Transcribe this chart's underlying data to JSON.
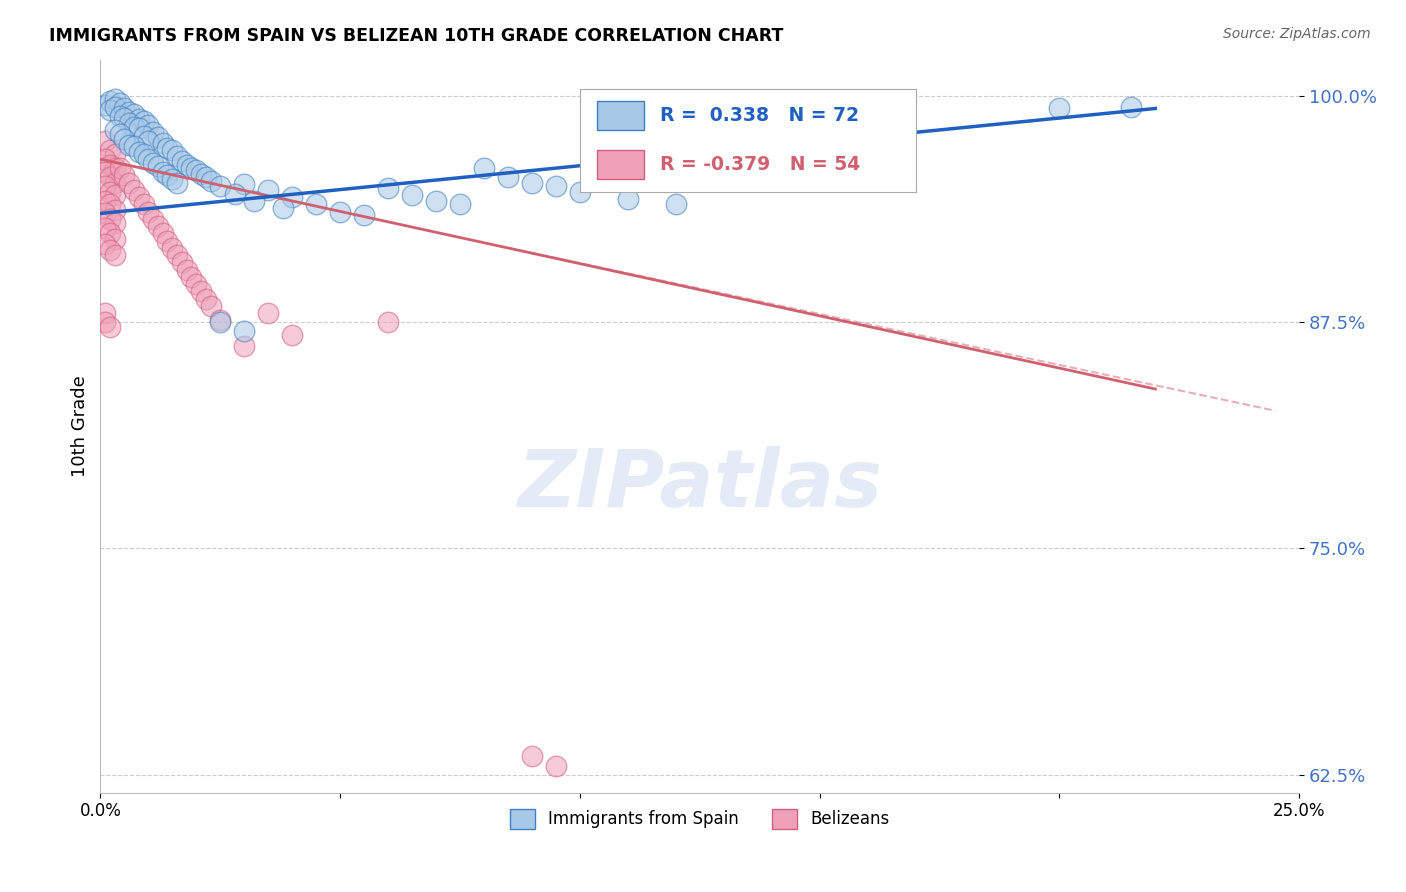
{
  "title": "IMMIGRANTS FROM SPAIN VS BELIZEAN 10TH GRADE CORRELATION CHART",
  "source": "Source: ZipAtlas.com",
  "ylabel": "10th Grade",
  "x_min": 0.0,
  "x_max": 0.25,
  "y_min": 0.615,
  "y_max": 1.02,
  "yticks": [
    0.625,
    0.75,
    0.875,
    1.0
  ],
  "ytick_labels": [
    "62.5%",
    "75.0%",
    "87.5%",
    "100.0%"
  ],
  "xticks": [
    0.0,
    0.05,
    0.1,
    0.15,
    0.2,
    0.25
  ],
  "xtick_labels": [
    "0.0%",
    "",
    "",
    "",
    "",
    "25.0%"
  ],
  "blue_R": 0.338,
  "blue_N": 72,
  "pink_R": -0.379,
  "pink_N": 54,
  "blue_color": "#A8C8E8",
  "pink_color": "#F0A0B8",
  "blue_edge_color": "#4080C0",
  "pink_edge_color": "#D06080",
  "blue_line_color": "#2060C0",
  "pink_line_color": "#D06070",
  "legend_label_blue": "Immigrants from Spain",
  "legend_label_pink": "Belizeans",
  "watermark": "ZIPatlas",
  "blue_trend_x": [
    0.0,
    0.22
  ],
  "blue_trend_y": [
    0.935,
    0.993
  ],
  "pink_trend_x": [
    0.0,
    0.22
  ],
  "pink_trend_y": [
    0.965,
    0.838
  ],
  "pink_dash_trend_x": [
    0.085,
    0.245
  ],
  "pink_dash_trend_y": [
    0.916,
    0.826
  ],
  "blue_scatter": [
    [
      0.001,
      0.995
    ],
    [
      0.002,
      0.997
    ],
    [
      0.003,
      0.998
    ],
    [
      0.004,
      0.996
    ],
    [
      0.002,
      0.992
    ],
    [
      0.003,
      0.994
    ],
    [
      0.005,
      0.993
    ],
    [
      0.006,
      0.991
    ],
    [
      0.004,
      0.989
    ],
    [
      0.007,
      0.99
    ],
    [
      0.005,
      0.988
    ],
    [
      0.008,
      0.987
    ],
    [
      0.006,
      0.985
    ],
    [
      0.009,
      0.986
    ],
    [
      0.007,
      0.983
    ],
    [
      0.01,
      0.984
    ],
    [
      0.003,
      0.981
    ],
    [
      0.008,
      0.982
    ],
    [
      0.011,
      0.98
    ],
    [
      0.004,
      0.979
    ],
    [
      0.009,
      0.978
    ],
    [
      0.012,
      0.977
    ],
    [
      0.005,
      0.976
    ],
    [
      0.01,
      0.975
    ],
    [
      0.006,
      0.973
    ],
    [
      0.013,
      0.974
    ],
    [
      0.007,
      0.972
    ],
    [
      0.014,
      0.971
    ],
    [
      0.008,
      0.969
    ],
    [
      0.015,
      0.97
    ],
    [
      0.009,
      0.968
    ],
    [
      0.016,
      0.967
    ],
    [
      0.01,
      0.965
    ],
    [
      0.017,
      0.964
    ],
    [
      0.011,
      0.963
    ],
    [
      0.018,
      0.962
    ],
    [
      0.012,
      0.961
    ],
    [
      0.019,
      0.96
    ],
    [
      0.013,
      0.958
    ],
    [
      0.02,
      0.959
    ],
    [
      0.014,
      0.956
    ],
    [
      0.021,
      0.957
    ],
    [
      0.015,
      0.954
    ],
    [
      0.022,
      0.955
    ],
    [
      0.016,
      0.952
    ],
    [
      0.023,
      0.953
    ],
    [
      0.03,
      0.951
    ],
    [
      0.025,
      0.95
    ],
    [
      0.035,
      0.948
    ],
    [
      0.028,
      0.946
    ],
    [
      0.04,
      0.944
    ],
    [
      0.032,
      0.942
    ],
    [
      0.045,
      0.94
    ],
    [
      0.038,
      0.938
    ],
    [
      0.05,
      0.936
    ],
    [
      0.055,
      0.934
    ],
    [
      0.06,
      0.949
    ],
    [
      0.065,
      0.945
    ],
    [
      0.07,
      0.942
    ],
    [
      0.075,
      0.94
    ],
    [
      0.08,
      0.96
    ],
    [
      0.085,
      0.955
    ],
    [
      0.09,
      0.952
    ],
    [
      0.095,
      0.95
    ],
    [
      0.1,
      0.947
    ],
    [
      0.11,
      0.943
    ],
    [
      0.12,
      0.94
    ],
    [
      0.13,
      0.992
    ],
    [
      0.2,
      0.993
    ],
    [
      0.215,
      0.994
    ],
    [
      0.025,
      0.875
    ],
    [
      0.03,
      0.87
    ]
  ],
  "pink_scatter": [
    [
      0.001,
      0.975
    ],
    [
      0.002,
      0.97
    ],
    [
      0.003,
      0.968
    ],
    [
      0.001,
      0.965
    ],
    [
      0.002,
      0.962
    ],
    [
      0.003,
      0.96
    ],
    [
      0.001,
      0.958
    ],
    [
      0.002,
      0.955
    ],
    [
      0.003,
      0.952
    ],
    [
      0.001,
      0.95
    ],
    [
      0.002,
      0.947
    ],
    [
      0.003,
      0.945
    ],
    [
      0.001,
      0.942
    ],
    [
      0.002,
      0.94
    ],
    [
      0.003,
      0.937
    ],
    [
      0.001,
      0.935
    ],
    [
      0.002,
      0.932
    ],
    [
      0.003,
      0.93
    ],
    [
      0.001,
      0.927
    ],
    [
      0.002,
      0.924
    ],
    [
      0.003,
      0.921
    ],
    [
      0.001,
      0.918
    ],
    [
      0.002,
      0.915
    ],
    [
      0.003,
      0.912
    ],
    [
      0.004,
      0.96
    ],
    [
      0.005,
      0.956
    ],
    [
      0.006,
      0.952
    ],
    [
      0.007,
      0.948
    ],
    [
      0.008,
      0.944
    ],
    [
      0.009,
      0.94
    ],
    [
      0.01,
      0.936
    ],
    [
      0.011,
      0.932
    ],
    [
      0.012,
      0.928
    ],
    [
      0.013,
      0.924
    ],
    [
      0.014,
      0.92
    ],
    [
      0.015,
      0.916
    ],
    [
      0.016,
      0.912
    ],
    [
      0.017,
      0.908
    ],
    [
      0.018,
      0.904
    ],
    [
      0.019,
      0.9
    ],
    [
      0.02,
      0.896
    ],
    [
      0.021,
      0.892
    ],
    [
      0.022,
      0.888
    ],
    [
      0.023,
      0.884
    ],
    [
      0.025,
      0.876
    ],
    [
      0.03,
      0.862
    ],
    [
      0.035,
      0.88
    ],
    [
      0.04,
      0.868
    ],
    [
      0.001,
      0.88
    ],
    [
      0.001,
      0.875
    ],
    [
      0.002,
      0.872
    ],
    [
      0.06,
      0.875
    ],
    [
      0.09,
      0.635
    ],
    [
      0.095,
      0.63
    ]
  ]
}
